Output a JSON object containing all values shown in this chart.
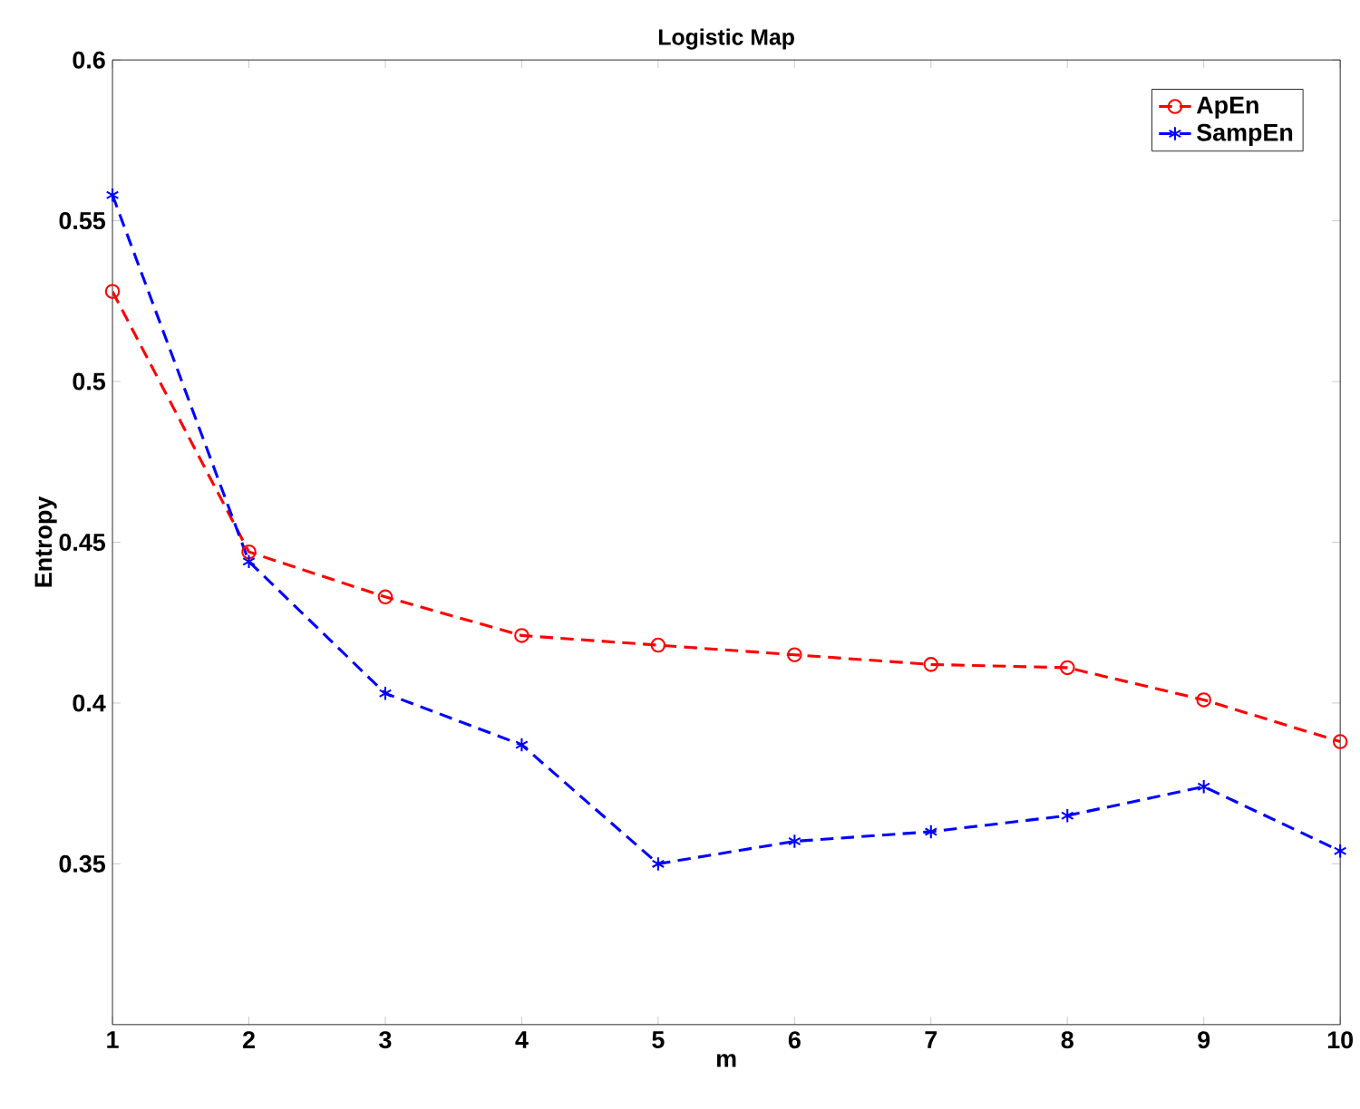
{
  "chart_data": {
    "type": "line",
    "title": "Logistic Map",
    "xlabel": "m",
    "ylabel": "Entropy",
    "x": [
      1,
      2,
      3,
      4,
      5,
      6,
      7,
      8,
      9,
      10
    ],
    "series": [
      {
        "name": "ApEn",
        "color": "#ff0000",
        "marker": "circle",
        "line_style": "dashed",
        "values": [
          0.528,
          0.447,
          0.433,
          0.421,
          0.418,
          0.415,
          0.412,
          0.411,
          0.401,
          0.388
        ]
      },
      {
        "name": "SampEn",
        "color": "#0000ff",
        "marker": "cross",
        "line_style": "dashed",
        "values": [
          0.558,
          0.444,
          0.403,
          0.387,
          0.35,
          0.357,
          0.36,
          0.365,
          0.374,
          0.354
        ]
      }
    ],
    "xlim": [
      1,
      10
    ],
    "ylim": [
      0.3,
      0.6
    ],
    "xticks": [
      1,
      2,
      3,
      4,
      5,
      6,
      7,
      8,
      9,
      10
    ],
    "yticks": [
      0.35,
      0.4,
      0.45,
      0.5,
      0.55,
      0.6
    ],
    "grid": false,
    "legend": "top right"
  }
}
